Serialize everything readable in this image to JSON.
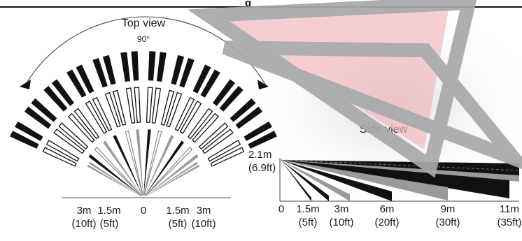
{
  "header": {
    "title_fragment": "g"
  },
  "top_view": {
    "title": "Top view",
    "angle_label": "90°",
    "axis_labels": [
      {
        "m": "3m",
        "ft": "(10ft)"
      },
      {
        "m": "1.5m",
        "ft": "(5ft)"
      },
      {
        "m": "0",
        "ft": ""
      },
      {
        "m": "1.5m",
        "ft": "(5ft)"
      },
      {
        "m": "3m",
        "ft": "(10ft)"
      }
    ]
  },
  "side_view": {
    "title": "Side view",
    "height_label": {
      "m": "2.1m",
      "ft": "(6.9ft)"
    },
    "axis_labels": [
      {
        "m": "0",
        "ft": ""
      },
      {
        "m": "1.5m",
        "ft": "(5ft)"
      },
      {
        "m": "3m",
        "ft": "(10ft)"
      },
      {
        "m": "6m",
        "ft": "(20ft)"
      },
      {
        "m": "9m",
        "ft": "(30ft)"
      },
      {
        "m": "11m",
        "ft": "(35ft)"
      }
    ]
  },
  "colors": {
    "ink": "#111111",
    "gray_zone": "#9a9a9a",
    "watermark_fill": "#f2b8bc",
    "watermark_frame": "#a8a8a8"
  }
}
